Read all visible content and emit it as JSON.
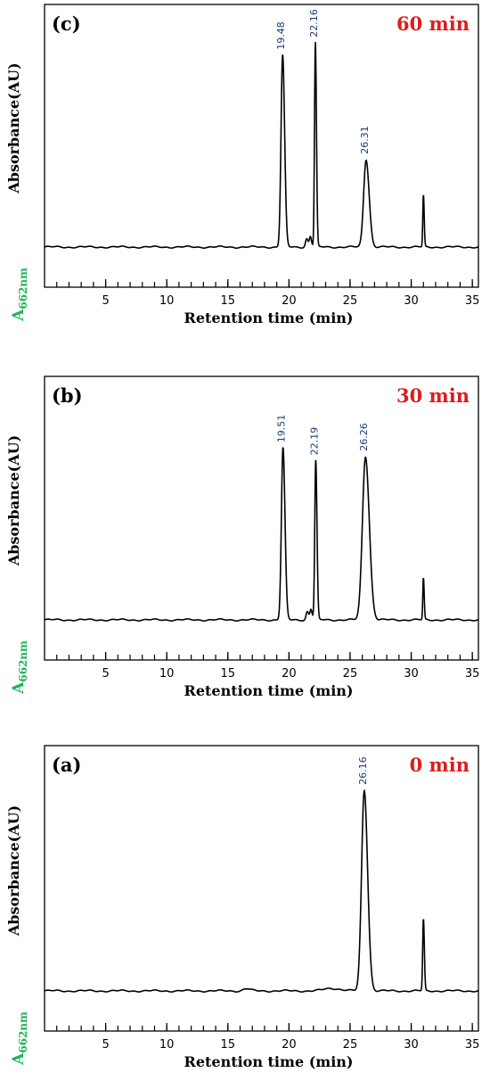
{
  "colors": {
    "time_label": "#e01b1b",
    "y_unit_label": "#1fb35a",
    "peak_label": "#1f3a78",
    "trace": "#000000"
  },
  "chart_data": [
    {
      "type": "line",
      "panel": "(c)",
      "time": "60 min",
      "ylabel": "Absorbance(AU)",
      "y_unit_main": "A",
      "y_unit_sub": "662nm",
      "xlabel": "Retention time (min)",
      "xlim": [
        0,
        35.5
      ],
      "xticks": [
        5,
        10,
        15,
        20,
        25,
        30,
        35
      ],
      "x_minor_step": 1,
      "ylim": [
        0,
        1
      ],
      "grid": false,
      "peaks": [
        {
          "x": 19.48,
          "height": 0.92,
          "width": 0.13,
          "label": "19.48"
        },
        {
          "x": 22.16,
          "height": 0.98,
          "width": 0.07,
          "label": "22.16"
        },
        {
          "x": 26.31,
          "height": 0.42,
          "width": 0.2,
          "label": "26.31"
        },
        {
          "x": 31.0,
          "height": 0.25,
          "width": 0.05,
          "label": ""
        },
        {
          "x": 21.45,
          "height": 0.04,
          "width": 0.1,
          "label": ""
        },
        {
          "x": 21.75,
          "height": 0.05,
          "width": 0.08,
          "label": ""
        }
      ]
    },
    {
      "type": "line",
      "panel": "(b)",
      "time": "30 min",
      "ylabel": "Absorbance(AU)",
      "y_unit_main": "A",
      "y_unit_sub": "662nm",
      "xlabel": "Retention time (min)",
      "xlim": [
        0,
        35.5
      ],
      "xticks": [
        5,
        10,
        15,
        20,
        25,
        30,
        35
      ],
      "x_minor_step": 1,
      "ylim": [
        0,
        1
      ],
      "grid": false,
      "peaks": [
        {
          "x": 19.51,
          "height": 0.82,
          "width": 0.13,
          "label": "19.51"
        },
        {
          "x": 22.19,
          "height": 0.76,
          "width": 0.08,
          "label": "22.19"
        },
        {
          "x": 26.26,
          "height": 0.78,
          "width": 0.25,
          "label": "26.26"
        },
        {
          "x": 31.0,
          "height": 0.2,
          "width": 0.05,
          "label": ""
        },
        {
          "x": 21.5,
          "height": 0.04,
          "width": 0.1,
          "label": ""
        },
        {
          "x": 21.8,
          "height": 0.05,
          "width": 0.08,
          "label": ""
        }
      ]
    },
    {
      "type": "line",
      "panel": "(a)",
      "time": "0 min",
      "ylabel": "Absorbance(AU)",
      "y_unit_main": "A",
      "y_unit_sub": "662nm",
      "xlabel": "Retention time (min)",
      "xlim": [
        0,
        35.5
      ],
      "xticks": [
        5,
        10,
        15,
        20,
        25,
        30,
        35
      ],
      "x_minor_step": 1,
      "ylim": [
        0,
        1
      ],
      "grid": false,
      "peaks": [
        {
          "x": 26.16,
          "height": 0.95,
          "width": 0.22,
          "label": "26.16"
        },
        {
          "x": 31.0,
          "height": 0.34,
          "width": 0.06,
          "label": ""
        },
        {
          "x": 16.5,
          "height": 0.01,
          "width": 0.25,
          "label": ""
        },
        {
          "x": 23.5,
          "height": 0.012,
          "width": 0.6,
          "label": ""
        }
      ]
    }
  ]
}
